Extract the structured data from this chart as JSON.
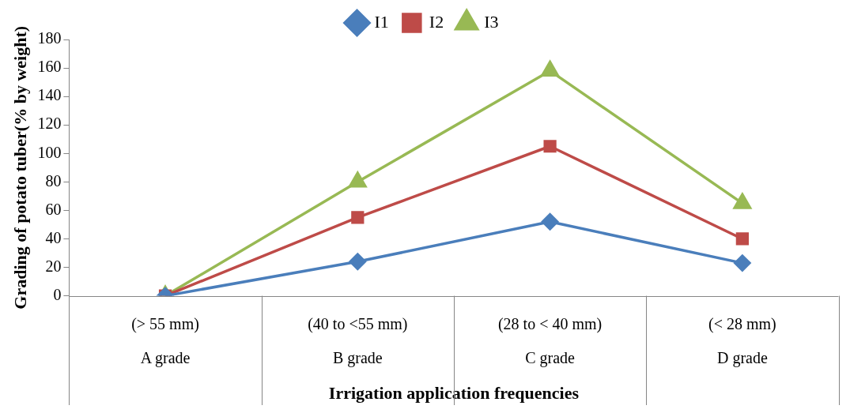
{
  "chart_data": {
    "type": "line",
    "xlabel": "Irrigation application frequencies",
    "ylabel": "Grading of potato tuber(% by weight)",
    "categories": [
      "(> 55 mm)\nA grade",
      "(40 to <55 mm)\nB grade",
      "(28 to < 40 mm)\nC grade",
      "(< 28 mm)\nD grade"
    ],
    "series": [
      {
        "name": "I1",
        "color": "#4a7ebb",
        "marker": "diamond",
        "values": [
          0,
          24,
          52,
          23
        ]
      },
      {
        "name": "I2",
        "color": "#be4b48",
        "marker": "square",
        "values": [
          0,
          55,
          105,
          40
        ]
      },
      {
        "name": "I3",
        "color": "#98b954",
        "marker": "triangle",
        "values": [
          0,
          80,
          158,
          65
        ]
      }
    ],
    "ylim": [
      0,
      180
    ],
    "yticks": [
      0,
      20,
      40,
      60,
      80,
      100,
      120,
      140,
      160,
      180
    ],
    "grid": false,
    "legend": "top",
    "line_style": "solid"
  }
}
